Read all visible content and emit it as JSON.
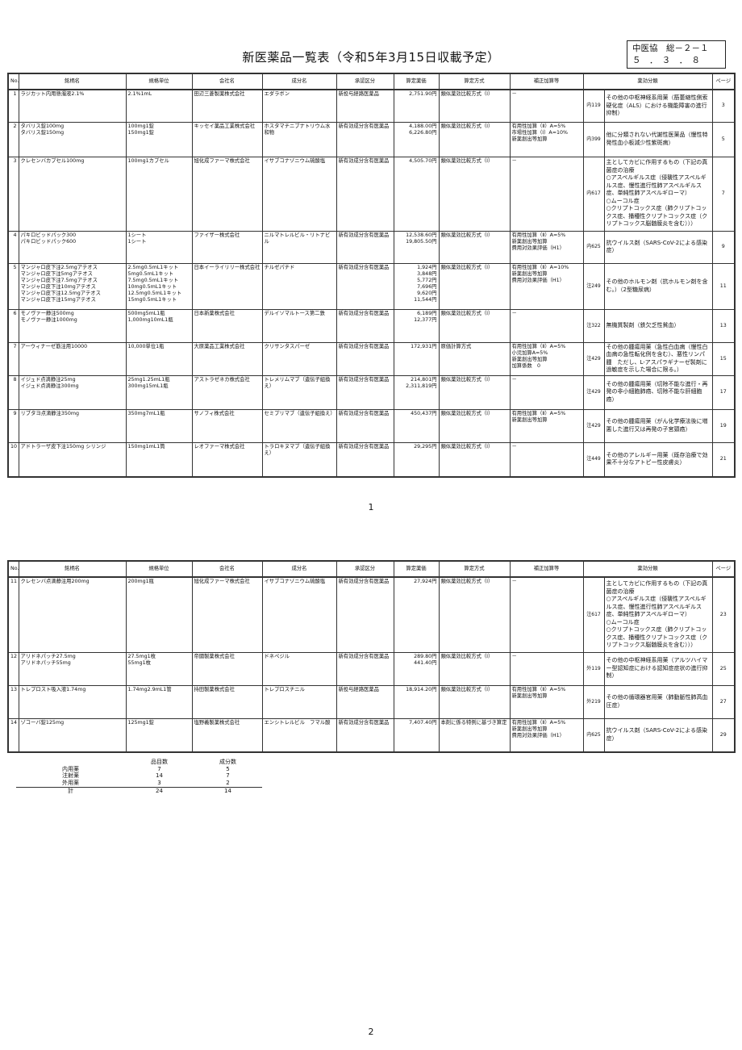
{
  "title": "新医薬品一覧表（令和5年3月15日収載予定）",
  "stamp": "中医協　総－２－１\n５　．　３　．　８",
  "headers": [
    "No.",
    "銘柄名",
    "規格単位",
    "会社名",
    "成分名",
    "承認区分",
    "算定薬価",
    "算定方式",
    "補正加算等",
    "薬効分類",
    "ページ"
  ],
  "pages": [
    {
      "page_number": "1",
      "rows": [
        {
          "no": "1",
          "name": "ラジカット内用懸濁液2.1%",
          "spec": "2.1%1mL",
          "company": "田辺三菱製薬株式会社",
          "ingredient": "エダラボン",
          "approval": "新投与経路医薬品",
          "price": "2,751.90円",
          "method": "類似薬効比較方式（Ⅰ）",
          "adjust": "－",
          "code": "内119",
          "effect": "その他の中枢神経系用薬（筋萎縮性側索硬化症（ALS）における機能障害の進行抑制）",
          "ref_page": "3"
        },
        {
          "no": "2",
          "name": "タバリス錠100mg\nタバリス錠150mg",
          "spec": "100mg1錠\n150mg1錠",
          "company": "キッセイ薬品工業株式会社",
          "ingredient": "ホスタマチニブナトリウム水和物",
          "approval": "新有効成分含有医薬品",
          "price": "4,188.00円\n6,226.80円",
          "method": "類似薬効比較方式（Ⅰ）",
          "adjust": "有用性加算（Ⅱ）A=5%\n市場性加算（Ⅰ）A=10%\n新薬創出等加算",
          "code": "内399",
          "effect": "他に分類されない代謝性医薬品（慢性特発性血小板減少性紫斑病）",
          "ref_page": "5"
        },
        {
          "no": "3",
          "name": "クレセンバカプセル100mg",
          "spec": "100mg1カプセル",
          "company": "旭化成ファーマ株式会社",
          "ingredient": "イサブコナゾニウム硫酸塩",
          "approval": "新有効成分含有医薬品",
          "price": "4,505.70円",
          "method": "類似薬効比較方式（Ⅰ）",
          "adjust": "－",
          "code": "内617",
          "effect": "主としてカビに作用するもの（下記の真菌症の治療\n○アスペルギルス症（侵襲性アスペルギルス症、慢性進行性肺アスペルギルス症、単純性肺アスペルギローマ）\n○ムーコル症\n○クリプトコックス症（肺クリプトコックス症、播種性クリプトコックス症（クリプトコックス脳髄膜炎を含む）））",
          "ref_page": "7"
        },
        {
          "no": "4",
          "name": "パキロビッドパック300\nパキロビッドパック600",
          "spec": "1シート\n1シート",
          "company": "ファイザー株式会社",
          "ingredient": "ニルマトレルビル・リトナビル",
          "approval": "新有効成分含有医薬品",
          "price": "12,538.60円\n19,805.50円",
          "method": "類似薬効比較方式（Ⅰ）",
          "adjust": "有用性加算（Ⅱ）A=5%\n新薬創出等加算\n費用対効果評価（H1）",
          "code": "内625",
          "effect": "抗ウイルス剤（SARS-CoV-2による感染症）",
          "ref_page": "9"
        },
        {
          "no": "5",
          "name": "マンジャロ皮下注2.5mgアテオス\nマンジャロ皮下注5mgアテオス\nマンジャロ皮下注7.5mgアテオス\nマンジャロ皮下注10mgアテオス\nマンジャロ皮下注12.5mgアテオス\nマンジャロ皮下注15mgアテオス",
          "spec": "2.5mg0.5mL1キット\n5mg0.5mL1キット\n7.5mg0.5mL1キット\n10mg0.5mL1キット\n12.5mg0.5mL1キット\n15mg0.5mL1キット",
          "company": "日本イーライリリー株式会社",
          "ingredient": "チルゼパチド",
          "approval": "新有効成分含有医薬品",
          "price": "1,924円\n3,848円\n5,772円\n7,696円\n9,620円\n11,544円",
          "method": "類似薬効比較方式（Ⅰ）",
          "adjust": "有用性加算（Ⅱ）A=10%\n新薬創出等加算\n費用対効果評価（H1）",
          "code": "注249",
          "effect": "その他のホルモン剤（抗ホルモン剤を含む。）（2型糖尿病）",
          "ref_page": "11"
        },
        {
          "no": "6",
          "name": "モノヴァー静注500mg\nモノヴァー静注1000mg",
          "spec": "500mg5mL1瓶\n1,000mg10mL1瓶",
          "company": "日本新薬株式会社",
          "ingredient": "デルイソマルトース第二鉄",
          "approval": "新有効成分含有医薬品",
          "price": "6,189円\n12,377円",
          "method": "類似薬効比較方式（Ⅰ）",
          "adjust": "－",
          "code": "注322",
          "effect": "無機質製剤（鉄欠乏性貧血）",
          "ref_page": "13"
        },
        {
          "no": "7",
          "name": "アーウィナーゼ筋注用10000",
          "spec": "10,000単位1瓶",
          "company": "大原薬品工業株式会社",
          "ingredient": "クリサンタスパーゼ",
          "approval": "新有効成分含有医薬品",
          "price": "172,931円",
          "method": "原価計算方式",
          "adjust": "有用性加算（Ⅱ）A=5%\n小児加算A=5%\n新薬創出等加算\n加算係数　0",
          "code": "注429",
          "effect": "その他の腫瘍用薬（急性白血病（慢性白血病の急性転化例を含む）、悪性リンパ腫　ただし、L-アスパラギナーゼ製剤に過敏症を示した場合に限る。）",
          "ref_page": "15"
        },
        {
          "no": "8",
          "name": "イジュド点滴静注25mg\nイジュド点滴静注300mg",
          "spec": "25mg1.25mL1瓶\n300mg15mL1瓶",
          "company": "アストラゼネカ株式会社",
          "ingredient": "トレメリムマブ（遺伝子組換え）",
          "approval": "新有効成分含有医薬品",
          "price": "214,801円\n2,311,819円",
          "method": "類似薬効比較方式（Ⅰ）",
          "adjust": "－",
          "code": "注429",
          "effect": "その他の腫瘍用薬（切除不能な進行・再発の非小細胞肺癌、切除不能な肝細胞癌）",
          "ref_page": "17"
        },
        {
          "no": "9",
          "name": "リブタヨ点滴静注350mg",
          "spec": "350mg7mL1瓶",
          "company": "サノフィ株式会社",
          "ingredient": "セミプリマブ（遺伝子組換え）",
          "approval": "新有効成分含有医薬品",
          "price": "450,437円",
          "method": "類似薬効比較方式（Ⅰ）",
          "adjust": "有用性加算（Ⅱ）A=5%\n新薬創出等加算",
          "code": "注429",
          "effect": "その他の腫瘍用薬（がん化学療法後に増悪した進行又は再発の子宮頸癌）",
          "ref_page": "19"
        },
        {
          "no": "10",
          "name": "アドトラーザ皮下注150mg シリンジ",
          "spec": "150mg1mL1筒",
          "company": "レオファーマ株式会社",
          "ingredient": "トラロキヌマブ（遺伝子組換え）",
          "approval": "新有効成分含有医薬品",
          "price": "29,295円",
          "method": "類似薬効比較方式（Ⅰ）",
          "adjust": "－",
          "code": "注449",
          "effect": "その他のアレルギー用薬（既存治療で効果不十分なアトピー性皮膚炎）",
          "ref_page": "21"
        }
      ]
    },
    {
      "page_number": "2",
      "rows": [
        {
          "no": "11",
          "name": "クレセンバ点滴静注用200mg",
          "spec": "200mg1瓶",
          "company": "旭化成ファーマ株式会社",
          "ingredient": "イサブコナゾニウム硫酸塩",
          "approval": "新有効成分含有医薬品",
          "price": "27,924円",
          "method": "類似薬効比較方式（Ⅰ）",
          "adjust": "－",
          "code": "注617",
          "effect": "主としてカビに作用するもの（下記の真菌症の治療\n○アスペルギルス症（侵襲性アスペルギルス症、慢性進行性肺アスペルギルス症、単純性肺アスペルギローマ）\n○ムーコル症\n○クリプトコックス症（肺クリプトコックス症、播種性クリプトコックス症（クリプトコックス脳髄膜炎を含む）））",
          "ref_page": "23"
        },
        {
          "no": "12",
          "name": "アリドネパッチ27.5mg\nアリドネパッチ55mg",
          "spec": "27.5mg1枚\n55mg1枚",
          "company": "帝國製薬株式会社",
          "ingredient": "ドネペジル",
          "approval": "新有効成分含有医薬品",
          "price": "289.80円\n441.40円",
          "method": "類似薬効比較方式（Ⅰ）",
          "adjust": "－",
          "code": "外119",
          "effect": "その他の中枢神経系用薬（アルツハイマー型認知症における認知症症状の進行抑制）",
          "ref_page": "25"
        },
        {
          "no": "13",
          "name": "トレプロスト吸入液1.74mg",
          "spec": "1.74mg2.9mL1管",
          "company": "持田製薬株式会社",
          "ingredient": "トレプロスチニル",
          "approval": "新投与経路医薬品",
          "price": "18,914.20円",
          "method": "類似薬効比較方式（Ⅰ）",
          "adjust": "有用性加算（Ⅱ）A=5%\n新薬創出等加算",
          "code": "外219",
          "effect": "その他の循環器官用薬（肺動脈性肺高血圧症）",
          "ref_page": "27"
        },
        {
          "no": "14",
          "name": "ゾコーバ錠125mg",
          "spec": "125mg1錠",
          "company": "塩野義製薬株式会社",
          "ingredient": "エンシトレルビル　フマル酸",
          "approval": "新有効成分含有医薬品",
          "price": "7,407.40円",
          "method": "本剤に係る特例に基づき算定",
          "adjust": "有用性加算（Ⅱ）A=5%\n新薬創出等加算\n費用対効果評価（H1）",
          "code": "内625",
          "effect": "抗ウイルス剤（SARS-CoV-2による感染症）",
          "ref_page": "29"
        }
      ]
    }
  ],
  "summary": {
    "headers": [
      "",
      "品目数",
      "成分数"
    ],
    "rows": [
      [
        "内用薬",
        "7",
        "5"
      ],
      [
        "注射薬",
        "14",
        "7"
      ],
      [
        "外用薬",
        "3",
        "2"
      ]
    ],
    "total": [
      "計",
      "24",
      "14"
    ]
  }
}
